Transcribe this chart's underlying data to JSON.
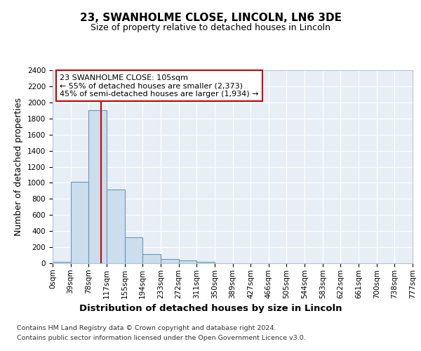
{
  "title": "23, SWANHOLME CLOSE, LINCOLN, LN6 3DE",
  "subtitle": "Size of property relative to detached houses in Lincoln",
  "xlabel": "Distribution of detached houses by size in Lincoln",
  "ylabel": "Number of detached properties",
  "bin_labels": [
    "0sqm",
    "39sqm",
    "78sqm",
    "117sqm",
    "155sqm",
    "194sqm",
    "233sqm",
    "272sqm",
    "311sqm",
    "350sqm",
    "389sqm",
    "427sqm",
    "466sqm",
    "505sqm",
    "544sqm",
    "583sqm",
    "622sqm",
    "661sqm",
    "700sqm",
    "738sqm",
    "777sqm"
  ],
  "bar_values": [
    20,
    1010,
    1905,
    920,
    320,
    110,
    55,
    35,
    20,
    0,
    0,
    0,
    0,
    0,
    0,
    0,
    0,
    0,
    0,
    0
  ],
  "bar_color": "#ccdded",
  "bar_edge_color": "#6699bb",
  "red_line_x": 2.68,
  "annotation_text": "23 SWANHOLME CLOSE: 105sqm\n← 55% of detached houses are smaller (2,373)\n45% of semi-detached houses are larger (1,934) →",
  "annotation_box_color": "#ffffff",
  "annotation_box_edge": "#cc0000",
  "ylim": [
    0,
    2400
  ],
  "yticks": [
    0,
    200,
    400,
    600,
    800,
    1000,
    1200,
    1400,
    1600,
    1800,
    2000,
    2200,
    2400
  ],
  "footer_line1": "Contains HM Land Registry data © Crown copyright and database right 2024.",
  "footer_line2": "Contains public sector information licensed under the Open Government Licence v3.0.",
  "bg_color": "#ffffff",
  "plot_bg_color": "#e8eef5",
  "grid_color": "#ffffff",
  "title_fontsize": 11,
  "subtitle_fontsize": 9,
  "ylabel_fontsize": 9,
  "xlabel_fontsize": 9.5,
  "tick_fontsize": 7.5,
  "footer_fontsize": 6.8
}
